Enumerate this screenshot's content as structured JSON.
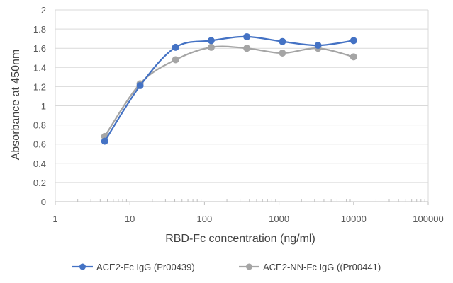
{
  "chart_data": {
    "type": "line",
    "title": "",
    "xlabel": "RBD-Fc concentration (ng/ml)",
    "ylabel": "Absorbance at 450nm",
    "x_scale": "log",
    "xlim": [
      1,
      100000
    ],
    "ylim": [
      0,
      2
    ],
    "x_ticks": [
      "1",
      "10",
      "100",
      "1000",
      "10000",
      "100000"
    ],
    "y_ticks": [
      "0",
      "0.2",
      "0.4",
      "0.6",
      "0.8",
      "1",
      "1.2",
      "1.4",
      "1.6",
      "1.8",
      "2"
    ],
    "grid": "horizontal major gridlines",
    "legend_position": "bottom",
    "series": [
      {
        "name": "ACE2-Fc IgG (Pr00439)",
        "color": "#4472c4",
        "points": [
          {
            "x": 4.6,
            "y": 0.63
          },
          {
            "x": 13.7,
            "y": 1.21
          },
          {
            "x": 41,
            "y": 1.61
          },
          {
            "x": 123,
            "y": 1.68
          },
          {
            "x": 370,
            "y": 1.72
          },
          {
            "x": 1111,
            "y": 1.67
          },
          {
            "x": 3333,
            "y": 1.63
          },
          {
            "x": 10000,
            "y": 1.68
          }
        ]
      },
      {
        "name": "ACE2-NN-Fc IgG ((Pr00441)",
        "color": "#a5a5a5",
        "points": [
          {
            "x": 4.6,
            "y": 0.68
          },
          {
            "x": 13.7,
            "y": 1.23
          },
          {
            "x": 41,
            "y": 1.48
          },
          {
            "x": 123,
            "y": 1.61
          },
          {
            "x": 370,
            "y": 1.6
          },
          {
            "x": 1111,
            "y": 1.55
          },
          {
            "x": 3333,
            "y": 1.6
          },
          {
            "x": 10000,
            "y": 1.51
          }
        ]
      }
    ]
  }
}
